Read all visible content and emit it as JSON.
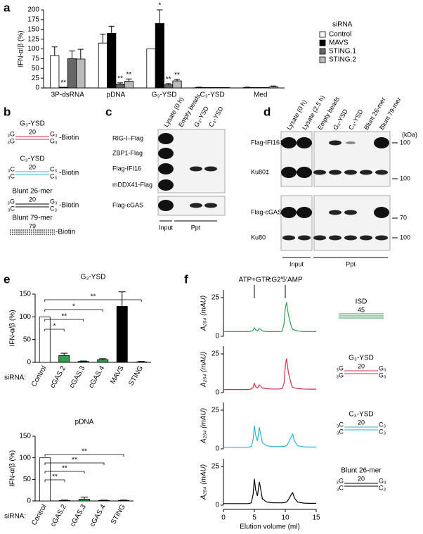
{
  "panel_labels": [
    "a",
    "b",
    "c",
    "d",
    "e",
    "f"
  ],
  "chart_data": [
    {
      "type": "bar",
      "ylabel": "IFN-α/β (%)",
      "categories": [
        "3P-dsRNA",
        "pDNA",
        "G₃-YSD",
        "C₃-YSD",
        "Med"
      ],
      "series": [
        {
          "name": "Control",
          "color": "#ffffff",
          "values": [
            83,
            115,
            100,
            1,
            1
          ],
          "errors": [
            22,
            23,
            null,
            1,
            1
          ],
          "significance": [
            null,
            null,
            null,
            null,
            null
          ]
        },
        {
          "name": "MAVS",
          "color": "#000000",
          "values": [
            2,
            140,
            165,
            1,
            1
          ],
          "errors": [
            null,
            18,
            35,
            null,
            null
          ],
          "significance": [
            "**",
            null,
            "*",
            null,
            null
          ]
        },
        {
          "name": "STING.1",
          "color": "#666666",
          "values": [
            75,
            10,
            8,
            1,
            1
          ],
          "errors": [
            20,
            3,
            3,
            null,
            null
          ],
          "significance": [
            null,
            "**",
            "**",
            null,
            null
          ]
        },
        {
          "name": "STING.2",
          "color": "#bbbbbb",
          "values": [
            74,
            17,
            18,
            1,
            3
          ],
          "errors": [
            25,
            6,
            4,
            null,
            2
          ],
          "significance": [
            null,
            "**",
            "**",
            null,
            null
          ]
        }
      ],
      "ylim": [
        0,
        200
      ],
      "yticks": [
        0,
        25,
        50,
        75,
        100,
        125,
        150,
        175,
        200
      ],
      "legend_title": "siRNA",
      "legend": "right"
    },
    {
      "type": "bar",
      "title": "G₃-YSD",
      "ylabel": "IFN-α/β (%)",
      "axis_caption": "siRNA:",
      "categories": [
        "Control",
        "cGAS.2",
        "cGAS.3",
        "cGAS.4",
        "MAVS",
        "STING"
      ],
      "values": [
        100,
        15,
        2,
        6,
        123,
        1
      ],
      "errors": [
        null,
        5,
        1,
        2,
        32,
        1
      ],
      "colors": [
        "#ffffff",
        "#2e9e4f",
        "#2e9e4f",
        "#2e9e4f",
        "#000000",
        "#000000"
      ],
      "significance": [
        null,
        "*",
        "**",
        "*",
        null,
        "**"
      ],
      "ylim": [
        0,
        150
      ],
      "yticks": [
        0,
        50,
        100,
        150
      ]
    },
    {
      "type": "bar",
      "title": "pDNA",
      "ylabel": "IFN-α/β (%)",
      "axis_caption": "siRNA:",
      "categories": [
        "Control",
        "cGAS.2",
        "cGAS.3",
        "cGAS.4",
        "STING"
      ],
      "values": [
        100,
        1,
        4,
        1,
        1
      ],
      "errors": [
        null,
        1,
        5,
        1,
        1
      ],
      "colors": [
        "#ffffff",
        "#2e9e4f",
        "#2e9e4f",
        "#2e9e4f",
        "#000000"
      ],
      "significance": [
        null,
        "**",
        "**",
        "**",
        "**"
      ],
      "ylim": [
        0,
        150
      ],
      "yticks": [
        0,
        50,
        100,
        150
      ]
    },
    {
      "type": "line",
      "ylabel": "A₂₅₄ (mAU)",
      "x": [
        0,
        1,
        2,
        3,
        4,
        4.5,
        4.8,
        5,
        5.2,
        5.5,
        5.8,
        6,
        6.3,
        7,
        8,
        9,
        9.5,
        9.8,
        10,
        10.2,
        10.5,
        11,
        11.2,
        11.5,
        12,
        13,
        14,
        15
      ],
      "series": [
        {
          "color": "#2e9e4f",
          "values": [
            3,
            3,
            3,
            3,
            3,
            3.2,
            4,
            5.5,
            4.2,
            3.5,
            5,
            4.5,
            3.5,
            3,
            3,
            3,
            3.3,
            8,
            18,
            22,
            14,
            6,
            4.5,
            4,
            3.5,
            3,
            3,
            3
          ]
        }
      ],
      "xlim": [
        0,
        15
      ],
      "ylim": [
        0,
        30
      ],
      "yticks": [
        0,
        25
      ],
      "annotations": [
        {
          "text": "ATP+GTP",
          "x": 5
        },
        {
          "text": "cG2′5′AMP",
          "x": 10
        }
      ],
      "diagram": {
        "name": "ISD",
        "length": "45",
        "color": "#2e9e4f"
      }
    },
    {
      "type": "line",
      "ylabel": "A₂₅₄ (mAU)",
      "x": [
        0,
        1,
        2,
        3,
        4,
        4.5,
        4.8,
        5,
        5.2,
        5.5,
        5.8,
        6,
        6.3,
        7,
        8,
        9,
        9.5,
        9.8,
        10,
        10.2,
        10.5,
        11,
        11.2,
        11.5,
        12,
        13,
        14,
        15
      ],
      "series": [
        {
          "color": "#d42e4a",
          "values": [
            2,
            2,
            2,
            2,
            2,
            2.3,
            3.5,
            6,
            3.8,
            3,
            5,
            4.2,
            3,
            2.5,
            2.3,
            2.3,
            2.5,
            6,
            17,
            22,
            13,
            5,
            3.5,
            3,
            2.6,
            2.3,
            2.2,
            2.2
          ]
        }
      ],
      "xlim": [
        0,
        15
      ],
      "ylim": [
        0,
        30
      ],
      "yticks": [
        0,
        25
      ],
      "diagram": {
        "name": "G₃-YSD",
        "length": "20",
        "left": [
          "₃G",
          "₃G"
        ],
        "right": [
          "G₃",
          "G₃"
        ],
        "color": "#d42e4a"
      }
    },
    {
      "type": "line",
      "ylabel": "A₂₅₄ (mAU)",
      "x": [
        0,
        1,
        2,
        3,
        4,
        4.5,
        4.8,
        5,
        5.2,
        5.5,
        5.8,
        6,
        6.3,
        7,
        8,
        9,
        9.5,
        9.8,
        10,
        10.2,
        10.5,
        11,
        11.2,
        11.5,
        12,
        13,
        14,
        15
      ],
      "series": [
        {
          "color": "#2fb1d8",
          "values": [
            1,
            1,
            1,
            1,
            1,
            1.5,
            6,
            15,
            9,
            5,
            14,
            10,
            4,
            2,
            1.5,
            1.5,
            1.5,
            1.6,
            1.8,
            2,
            4,
            8,
            9.5,
            5,
            2,
            1.3,
            1.2,
            1.2
          ]
        }
      ],
      "xlim": [
        0,
        15
      ],
      "ylim": [
        0,
        30
      ],
      "yticks": [
        0,
        25
      ],
      "diagram": {
        "name": "C₃-YSD",
        "length": "20",
        "left": [
          "₃C",
          "₃C"
        ],
        "right": [
          "C₃",
          "C₃"
        ],
        "color": "#2fb1d8"
      }
    },
    {
      "type": "line",
      "ylabel": "A₂₅₄ (mAU)",
      "xlabel": "Elution volume (ml)",
      "x": [
        0,
        1,
        2,
        3,
        4,
        4.5,
        4.8,
        5,
        5.2,
        5.5,
        5.8,
        6,
        6.3,
        7,
        8,
        9,
        9.5,
        9.8,
        10,
        10.2,
        10.5,
        11,
        11.2,
        11.5,
        12,
        13,
        14,
        15
      ],
      "series": [
        {
          "color": "#000000",
          "values": [
            1,
            1,
            1,
            1,
            1,
            1.5,
            7,
            17,
            10,
            6,
            15,
            11,
            4,
            2,
            1.5,
            1.5,
            1.5,
            1.6,
            1.8,
            2,
            3.5,
            7,
            8,
            4.5,
            2,
            1.3,
            1.2,
            1.2
          ]
        }
      ],
      "xlim": [
        0,
        15
      ],
      "ylim": [
        0,
        30
      ],
      "yticks": [
        0,
        25
      ],
      "xticks": [
        0,
        5,
        10,
        15
      ],
      "diagram": {
        "name": "Blunt 26-mer",
        "length": "20",
        "left": [
          "₃G",
          "₃C"
        ],
        "right": [
          "G₃",
          "C₃"
        ],
        "color": "#000000"
      }
    }
  ],
  "panel_b": {
    "probes": [
      {
        "name": "G₃-YSD",
        "length": "20",
        "left": [
          "₃G",
          "₃G"
        ],
        "right": [
          "G₃",
          "G₃"
        ],
        "tag": "-Biotin",
        "color": "#d42e4a"
      },
      {
        "name": "C₃-YSD",
        "length": "20",
        "left": [
          "₃C",
          "₃C"
        ],
        "right": [
          "C₃",
          "C₃"
        ],
        "tag": "-Biotin",
        "color": "#2fb1d8"
      },
      {
        "name": "Blunt 26-mer",
        "length": "20",
        "left": [
          "₃G",
          "₃C"
        ],
        "right": [
          "G₃",
          "C₃"
        ],
        "tag": "-Biotin",
        "color": "#000000"
      },
      {
        "name": "Blunt 79-mer",
        "length": "79",
        "tag": "-Biotin",
        "color": "#000000"
      }
    ]
  },
  "panel_c": {
    "lanes": [
      "Lysate (0 h)",
      "Empty beads",
      "G₃-YSD",
      "C₃-YSD"
    ],
    "lane_colors": [
      "#000000",
      "#000000",
      "#d42e4a",
      "#2fb1d8"
    ],
    "rows": [
      "RIG-I–Flag",
      "ZBP1-Flag",
      "Flag-IFI16",
      "mDDX41-Flag",
      "Flag-cGAS"
    ],
    "groups": [
      "Input",
      "Ppt"
    ]
  },
  "panel_d": {
    "lanes": [
      "Lysate (0 h)",
      "Lysate (2.5 h)",
      "Empty beads",
      "G₃-YSD",
      "C₃-YSD",
      "Blunt 26-mer",
      "Blunt 79-mer"
    ],
    "lane_colors": [
      "#000000",
      "#000000",
      "#000000",
      "#d42e4a",
      "#2fb1d8",
      "#000000",
      "#000000"
    ],
    "rows": [
      "Flag-IFI16‡",
      "Ku80‡",
      "Flag-cGAS",
      "Ku80"
    ],
    "unit": "(kDa)",
    "markers": [
      "100",
      "100",
      "70",
      "100"
    ],
    "groups": [
      "Input",
      "Ppt"
    ]
  }
}
